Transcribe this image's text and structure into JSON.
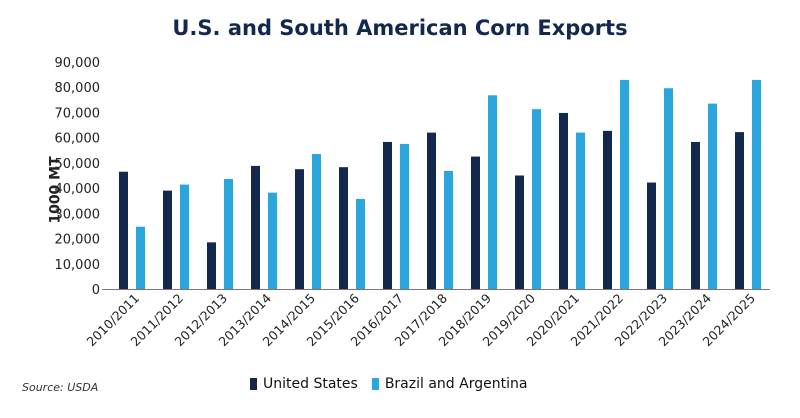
{
  "chart_data": {
    "type": "bar",
    "title": "U.S. and South American Corn Exports",
    "xlabel": "",
    "ylabel": "1000 MT",
    "ylim": [
      0,
      90000
    ],
    "yticks": [
      "0",
      "10,000",
      "20,000",
      "30,000",
      "40,000",
      "50,000",
      "60,000",
      "70,000",
      "80,000",
      "90,000"
    ],
    "categories": [
      "2010/2011",
      "2011/2012",
      "2012/2013",
      "2013/2014",
      "2014/2015",
      "2015/2016",
      "2016/2017",
      "2017/2018",
      "2018/2019",
      "2019/2020",
      "2020/2021",
      "2021/2022",
      "2022/2023",
      "2023/2024",
      "2024/2025"
    ],
    "series": [
      {
        "name": "United States",
        "color": "#12284c",
        "values": [
          46500,
          39000,
          18500,
          48800,
          47500,
          48300,
          58300,
          62000,
          52500,
          45000,
          69800,
          62700,
          42200,
          58300,
          62200
        ]
      },
      {
        "name": "Brazil and Argentina",
        "color": "#2aa6dd",
        "values": [
          24700,
          41400,
          43600,
          38200,
          53500,
          35700,
          57500,
          46800,
          76800,
          71300,
          62000,
          82900,
          79600,
          73500,
          82900
        ]
      }
    ],
    "legend_position": "bottom",
    "grid": false,
    "source": "Source: USDA"
  }
}
